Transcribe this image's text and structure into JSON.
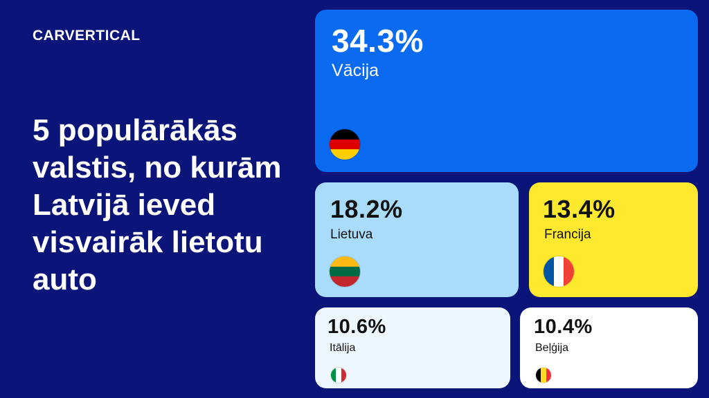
{
  "brand": {
    "logo_text": "CARVERTICAL"
  },
  "headline": "5 populārākās valstis, no kurām Latvijā ieved visvairāk lietotu auto",
  "chart_data": {
    "type": "treemap",
    "unit": "%",
    "items": [
      {
        "country": "Vācija",
        "value": 34.3,
        "label": "34.3%",
        "color": "#0a6af0",
        "flag": [
          "#000000",
          "#dd0000",
          "#ffce00"
        ],
        "flag_orientation": "horizontal"
      },
      {
        "country": "Lietuva",
        "value": 18.2,
        "label": "18.2%",
        "color": "#a9dcfb",
        "flag": [
          "#fdb913",
          "#006a44",
          "#c1272d"
        ],
        "flag_orientation": "horizontal"
      },
      {
        "country": "Francija",
        "value": 13.4,
        "label": "13.4%",
        "color": "#ffe92e",
        "flag": [
          "#0055a4",
          "#ffffff",
          "#ef4135"
        ],
        "flag_orientation": "vertical"
      },
      {
        "country": "Itālija",
        "value": 10.6,
        "label": "10.6%",
        "color": "#eef7fd",
        "flag": [
          "#009246",
          "#ffffff",
          "#ce2b37"
        ],
        "flag_orientation": "vertical"
      },
      {
        "country": "Beļģija",
        "value": 10.4,
        "label": "10.4%",
        "color": "#ffffff",
        "flag": [
          "#000000",
          "#fdda24",
          "#ef3340"
        ],
        "flag_orientation": "vertical"
      }
    ]
  }
}
